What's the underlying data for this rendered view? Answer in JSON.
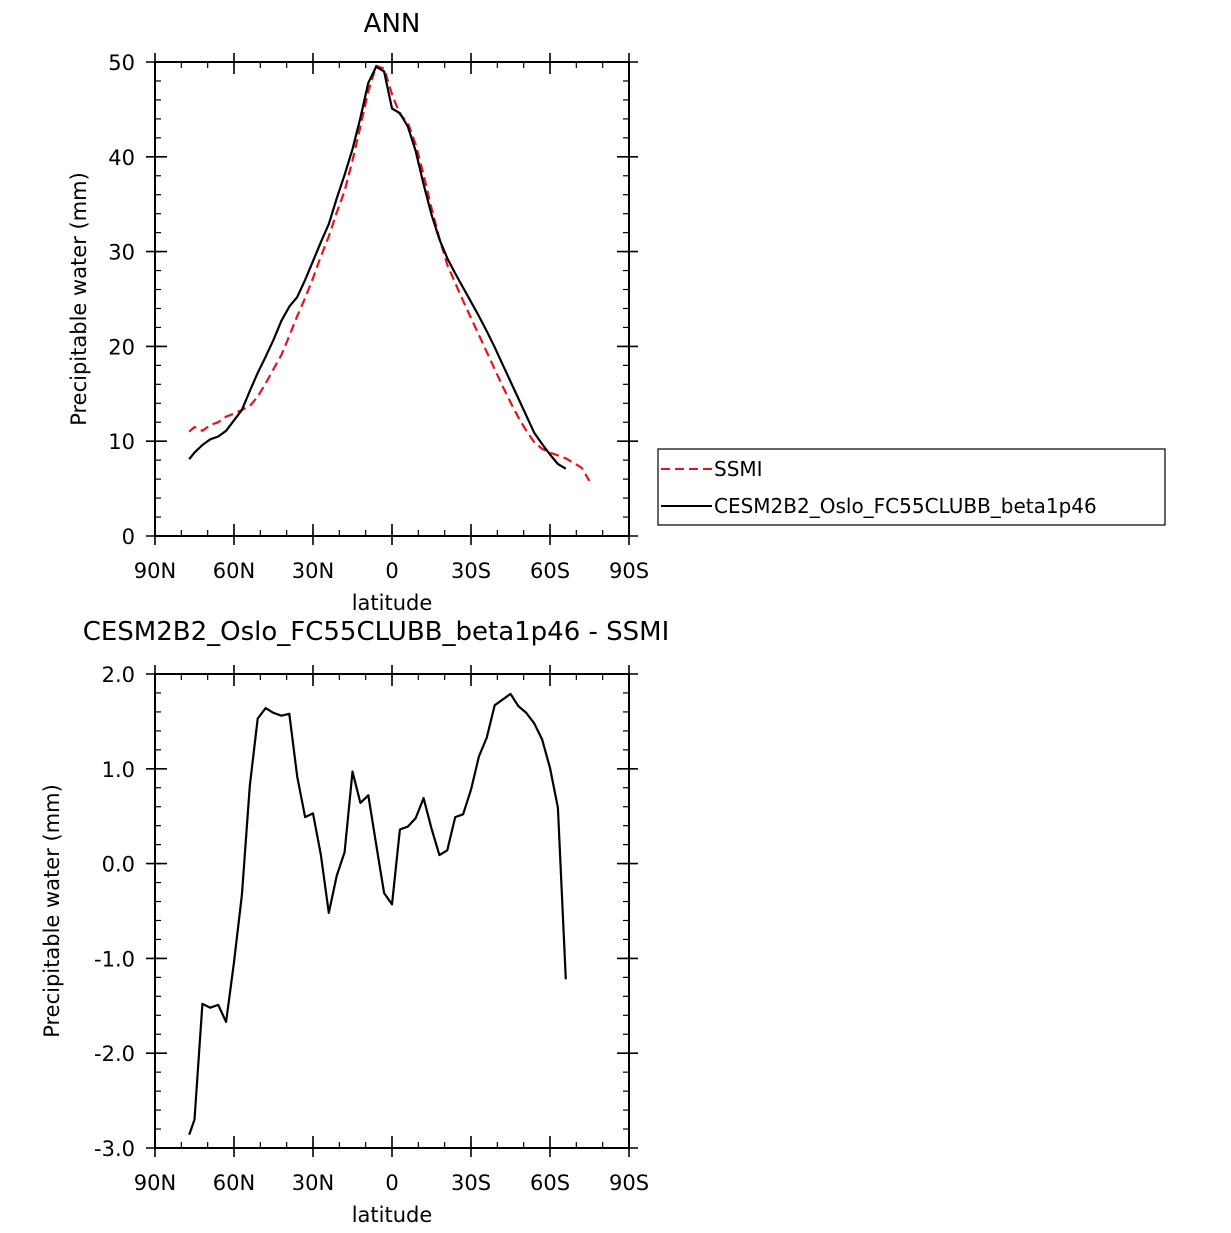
{
  "colors": {
    "ssmi": "#e8121a",
    "model": "#000000"
  },
  "legend": {
    "entries": [
      {
        "label": "SSMI",
        "style": "dashed",
        "color": "#e8121a"
      },
      {
        "label": "CESM2B2_Oslo_FC55CLUBB_beta1p46",
        "style": "solid",
        "color": "#000000"
      }
    ]
  },
  "chart_data": [
    {
      "type": "line",
      "title": "ANN",
      "xlabel": "latitude",
      "ylabel": "Precipitable water (mm)",
      "xlim": [
        -90,
        90
      ],
      "ylim": [
        0,
        50
      ],
      "xticks": [
        {
          "value": -90,
          "label": "90N"
        },
        {
          "value": -60,
          "label": "60N"
        },
        {
          "value": -30,
          "label": "30N"
        },
        {
          "value": 0,
          "label": "0"
        },
        {
          "value": 30,
          "label": "30S"
        },
        {
          "value": 60,
          "label": "60S"
        },
        {
          "value": 90,
          "label": "90S"
        }
      ],
      "yticks": [
        {
          "value": 0,
          "label": "0"
        },
        {
          "value": 10,
          "label": "10"
        },
        {
          "value": 20,
          "label": "20"
        },
        {
          "value": 30,
          "label": "30"
        },
        {
          "value": 40,
          "label": "40"
        },
        {
          "value": 50,
          "label": "50"
        }
      ],
      "series": [
        {
          "name": "SSMI",
          "style": "dashed",
          "color": "#e8121a",
          "x": [
            -77,
            -75,
            -72,
            -69,
            -66,
            -63,
            -60,
            -57,
            -54,
            -51,
            -48,
            -45,
            -42,
            -39,
            -36,
            -33,
            -30,
            -27,
            -24,
            -21,
            -18,
            -15,
            -12,
            -9,
            -6,
            -3,
            0,
            3,
            6,
            9,
            12,
            15,
            18,
            21,
            24,
            27,
            30,
            33,
            36,
            39,
            42,
            45,
            48,
            51,
            54,
            57,
            60,
            63,
            66,
            69,
            72,
            75
          ],
          "y": [
            11.0,
            11.5,
            11.1,
            11.7,
            12.0,
            12.6,
            12.9,
            13.3,
            13.7,
            14.7,
            16.1,
            17.6,
            19.1,
            21.1,
            23.2,
            25.1,
            27.2,
            29.5,
            31.6,
            34.1,
            36.4,
            39.6,
            43.2,
            46.9,
            49.6,
            49.3,
            46.6,
            44.5,
            43.6,
            41.3,
            38.1,
            34.6,
            31.4,
            28.6,
            26.7,
            24.8,
            23.0,
            21.2,
            19.4,
            17.6,
            15.8,
            14.1,
            12.5,
            11.1,
            9.9,
            9.2,
            8.8,
            8.5,
            8.2,
            7.7,
            7.2,
            5.8
          ]
        },
        {
          "name": "CESM2B2_Oslo_FC55CLUBB_beta1p46",
          "style": "solid",
          "color": "#000000",
          "x": [
            -77,
            -75,
            -72,
            -69,
            -66,
            -63,
            -60,
            -57,
            -54,
            -51,
            -48,
            -45,
            -42,
            -39,
            -36,
            -33,
            -30,
            -27,
            -24,
            -21,
            -18,
            -15,
            -12,
            -9,
            -6,
            -3,
            0,
            3,
            6,
            9,
            12,
            15,
            18,
            21,
            24,
            27,
            30,
            33,
            36,
            39,
            42,
            45,
            48,
            51,
            54,
            57,
            60,
            63,
            66
          ],
          "y": [
            8.1,
            8.8,
            9.6,
            10.2,
            10.5,
            11.1,
            12.2,
            13.3,
            15.3,
            17.2,
            18.9,
            20.7,
            22.7,
            24.2,
            25.2,
            27.0,
            29.0,
            31.0,
            32.9,
            35.6,
            38.1,
            40.8,
            44.1,
            47.8,
            49.5,
            49.0,
            45.1,
            44.6,
            43.2,
            40.6,
            37.1,
            33.9,
            31.3,
            29.3,
            27.7,
            26.2,
            24.7,
            23.2,
            21.6,
            19.9,
            18.1,
            16.3,
            14.5,
            12.7,
            10.9,
            9.7,
            8.6,
            7.6,
            7.1
          ]
        }
      ]
    },
    {
      "type": "line",
      "title": "CESM2B2_Oslo_FC55CLUBB_beta1p46 - SSMI",
      "xlabel": "latitude",
      "ylabel": "Precipitable water (mm)",
      "xlim": [
        -90,
        90
      ],
      "ylim": [
        -3.0,
        2.0
      ],
      "xticks": [
        {
          "value": -90,
          "label": "90N"
        },
        {
          "value": -60,
          "label": "60N"
        },
        {
          "value": -30,
          "label": "30N"
        },
        {
          "value": 0,
          "label": "0"
        },
        {
          "value": 30,
          "label": "30S"
        },
        {
          "value": 60,
          "label": "60S"
        },
        {
          "value": 90,
          "label": "90S"
        }
      ],
      "yticks": [
        {
          "value": -3.0,
          "label": "-3.0"
        },
        {
          "value": -2.0,
          "label": "-2.0"
        },
        {
          "value": -1.0,
          "label": "-1.0"
        },
        {
          "value": 0.0,
          "label": "0.0"
        },
        {
          "value": 1.0,
          "label": "1.0"
        },
        {
          "value": 2.0,
          "label": "2.0"
        }
      ],
      "series": [
        {
          "style": "solid",
          "color": "#000000",
          "x": [
            -77,
            -75,
            -72,
            -69,
            -66,
            -63,
            -60,
            -57,
            -54,
            -51,
            -48,
            -45,
            -42,
            -39,
            -36,
            -33,
            -30,
            -27,
            -24,
            -21,
            -18,
            -15,
            -12,
            -9,
            -6,
            -3,
            0,
            3,
            6,
            9,
            12,
            15,
            18,
            21,
            24,
            27,
            30,
            33,
            36,
            39,
            42,
            45,
            48,
            51,
            54,
            57,
            60,
            63,
            66
          ],
          "y": [
            -2.86,
            -2.7,
            -1.48,
            -1.52,
            -1.49,
            -1.67,
            -1.04,
            -0.33,
            0.82,
            1.53,
            1.64,
            1.59,
            1.56,
            1.58,
            0.92,
            0.49,
            0.53,
            0.09,
            -0.52,
            -0.13,
            0.12,
            0.97,
            0.64,
            0.72,
            0.2,
            -0.31,
            -0.43,
            0.36,
            0.39,
            0.48,
            0.69,
            0.37,
            0.09,
            0.14,
            0.49,
            0.52,
            0.78,
            1.13,
            1.33,
            1.67,
            1.73,
            1.79,
            1.66,
            1.59,
            1.48,
            1.31,
            1.01,
            0.59,
            -1.22
          ]
        }
      ]
    }
  ]
}
